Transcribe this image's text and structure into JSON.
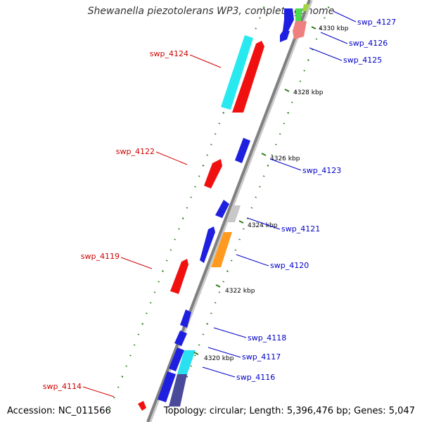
{
  "title": "Shewanella piezotolerans WP3, complete genome",
  "accession": "Accession: NC_011566",
  "topology": "Topology: circular; Length: 5,396,476 bp; Genes: 5,047",
  "colors": {
    "backbone": "#808080",
    "tick": "#2e7d1f",
    "left_label": "#d00000",
    "right_label": "#0000c8",
    "scale_label": "#000000"
  },
  "scale_labels": [
    "4330 kbp",
    "4328 kbp",
    "4326 kbp",
    "4324 kbp",
    "4322 kbp",
    "4320 kbp"
  ],
  "gene_labels_left": [
    "swp_4124",
    "swp_4122",
    "swp_4119",
    "swp_4114"
  ],
  "gene_labels_right": [
    "swp_4127",
    "swp_4126",
    "swp_4125",
    "swp_4123",
    "swp_4121",
    "swp_4120",
    "swp_4118",
    "swp_4117",
    "swp_4116"
  ]
}
